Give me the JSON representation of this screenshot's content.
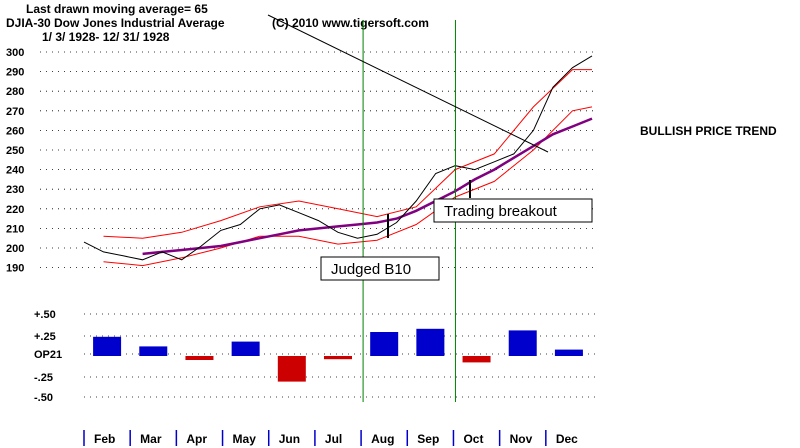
{
  "header": {
    "last_ma": "Last drawn moving average= 65",
    "ticker": "DJIA-30  Dow Jones Industrial Average",
    "copyright": "(C) 2010 www.tigersoft.com",
    "date_range": "1/ 3/ 1928- 12/ 31/ 1928"
  },
  "side_label": "BULLISH PRICE TREND",
  "annotations": {
    "breakout": "Trading breakout",
    "b10": "Judged B10"
  },
  "colors": {
    "price": "#000000",
    "bands": "#ff0000",
    "ma": "#800080",
    "signals": "#008000",
    "pos_bars": "#0000cc",
    "neg_bars": "#cc0000"
  },
  "chart_data": [
    {
      "type": "line",
      "title": "DJIA-30 Dow Jones Industrial Average",
      "y_ticks": [
        300,
        290,
        280,
        270,
        260,
        250,
        240,
        230,
        220,
        210,
        200,
        190
      ],
      "ylim": [
        185,
        305
      ],
      "x_months": [
        "Feb",
        "Mar",
        "Apr",
        "May",
        "Jun",
        "Jul",
        "Aug",
        "Sep",
        "Oct",
        "Nov",
        "Dec"
      ],
      "series": [
        {
          "name": "DJIA close",
          "x": [
            0,
            2,
            4,
            6,
            8,
            10,
            12,
            14,
            16,
            18,
            20,
            22,
            24,
            26,
            28,
            30,
            32,
            34,
            36,
            38,
            40,
            42,
            44,
            46,
            48,
            50,
            52
          ],
          "values": [
            203,
            198,
            196,
            194,
            198,
            194,
            201,
            209,
            212,
            220,
            222,
            218,
            214,
            208,
            205,
            207,
            213,
            224,
            238,
            242,
            240,
            244,
            248,
            260,
            282,
            292,
            298
          ]
        },
        {
          "name": "65-day moving average",
          "x": [
            6,
            8,
            10,
            12,
            14,
            16,
            18,
            20,
            22,
            24,
            26,
            28,
            30,
            32,
            34,
            36,
            38,
            40,
            42,
            44,
            46,
            48,
            50,
            52
          ],
          "values": [
            197,
            198,
            199,
            200,
            201,
            203,
            205,
            207,
            209,
            210,
            211,
            212,
            213,
            215,
            219,
            224,
            229,
            235,
            240,
            246,
            252,
            258,
            262,
            266
          ]
        },
        {
          "name": "Upper band",
          "x": [
            2,
            6,
            10,
            14,
            18,
            22,
            26,
            30,
            34,
            38,
            42,
            46,
            50,
            52
          ],
          "values": [
            206,
            205,
            208,
            214,
            221,
            224,
            220,
            216,
            221,
            240,
            248,
            272,
            291,
            291
          ]
        },
        {
          "name": "Lower band",
          "x": [
            2,
            6,
            10,
            14,
            18,
            22,
            26,
            30,
            34,
            38,
            42,
            46,
            50,
            52
          ],
          "values": [
            193,
            191,
            195,
            200,
            206,
            206,
            202,
            204,
            212,
            226,
            234,
            250,
            270,
            272
          ]
        }
      ],
      "signal_lines": [
        "Aug",
        "Oct"
      ]
    },
    {
      "type": "bar",
      "title": "OP21",
      "y_ticks": [
        "+.50",
        "+.25",
        "OP21",
        "-.25",
        "-.50"
      ],
      "ylim": [
        -0.5,
        0.5
      ],
      "categories": [
        "Feb",
        "Mar",
        "Apr",
        "May",
        "Jun",
        "Jul",
        "Aug",
        "Sep",
        "Oct",
        "Nov",
        "Dec"
      ],
      "values": [
        0.24,
        0.12,
        -0.05,
        0.18,
        -0.32,
        -0.04,
        0.3,
        0.34,
        -0.08,
        0.32,
        0.08
      ]
    }
  ]
}
